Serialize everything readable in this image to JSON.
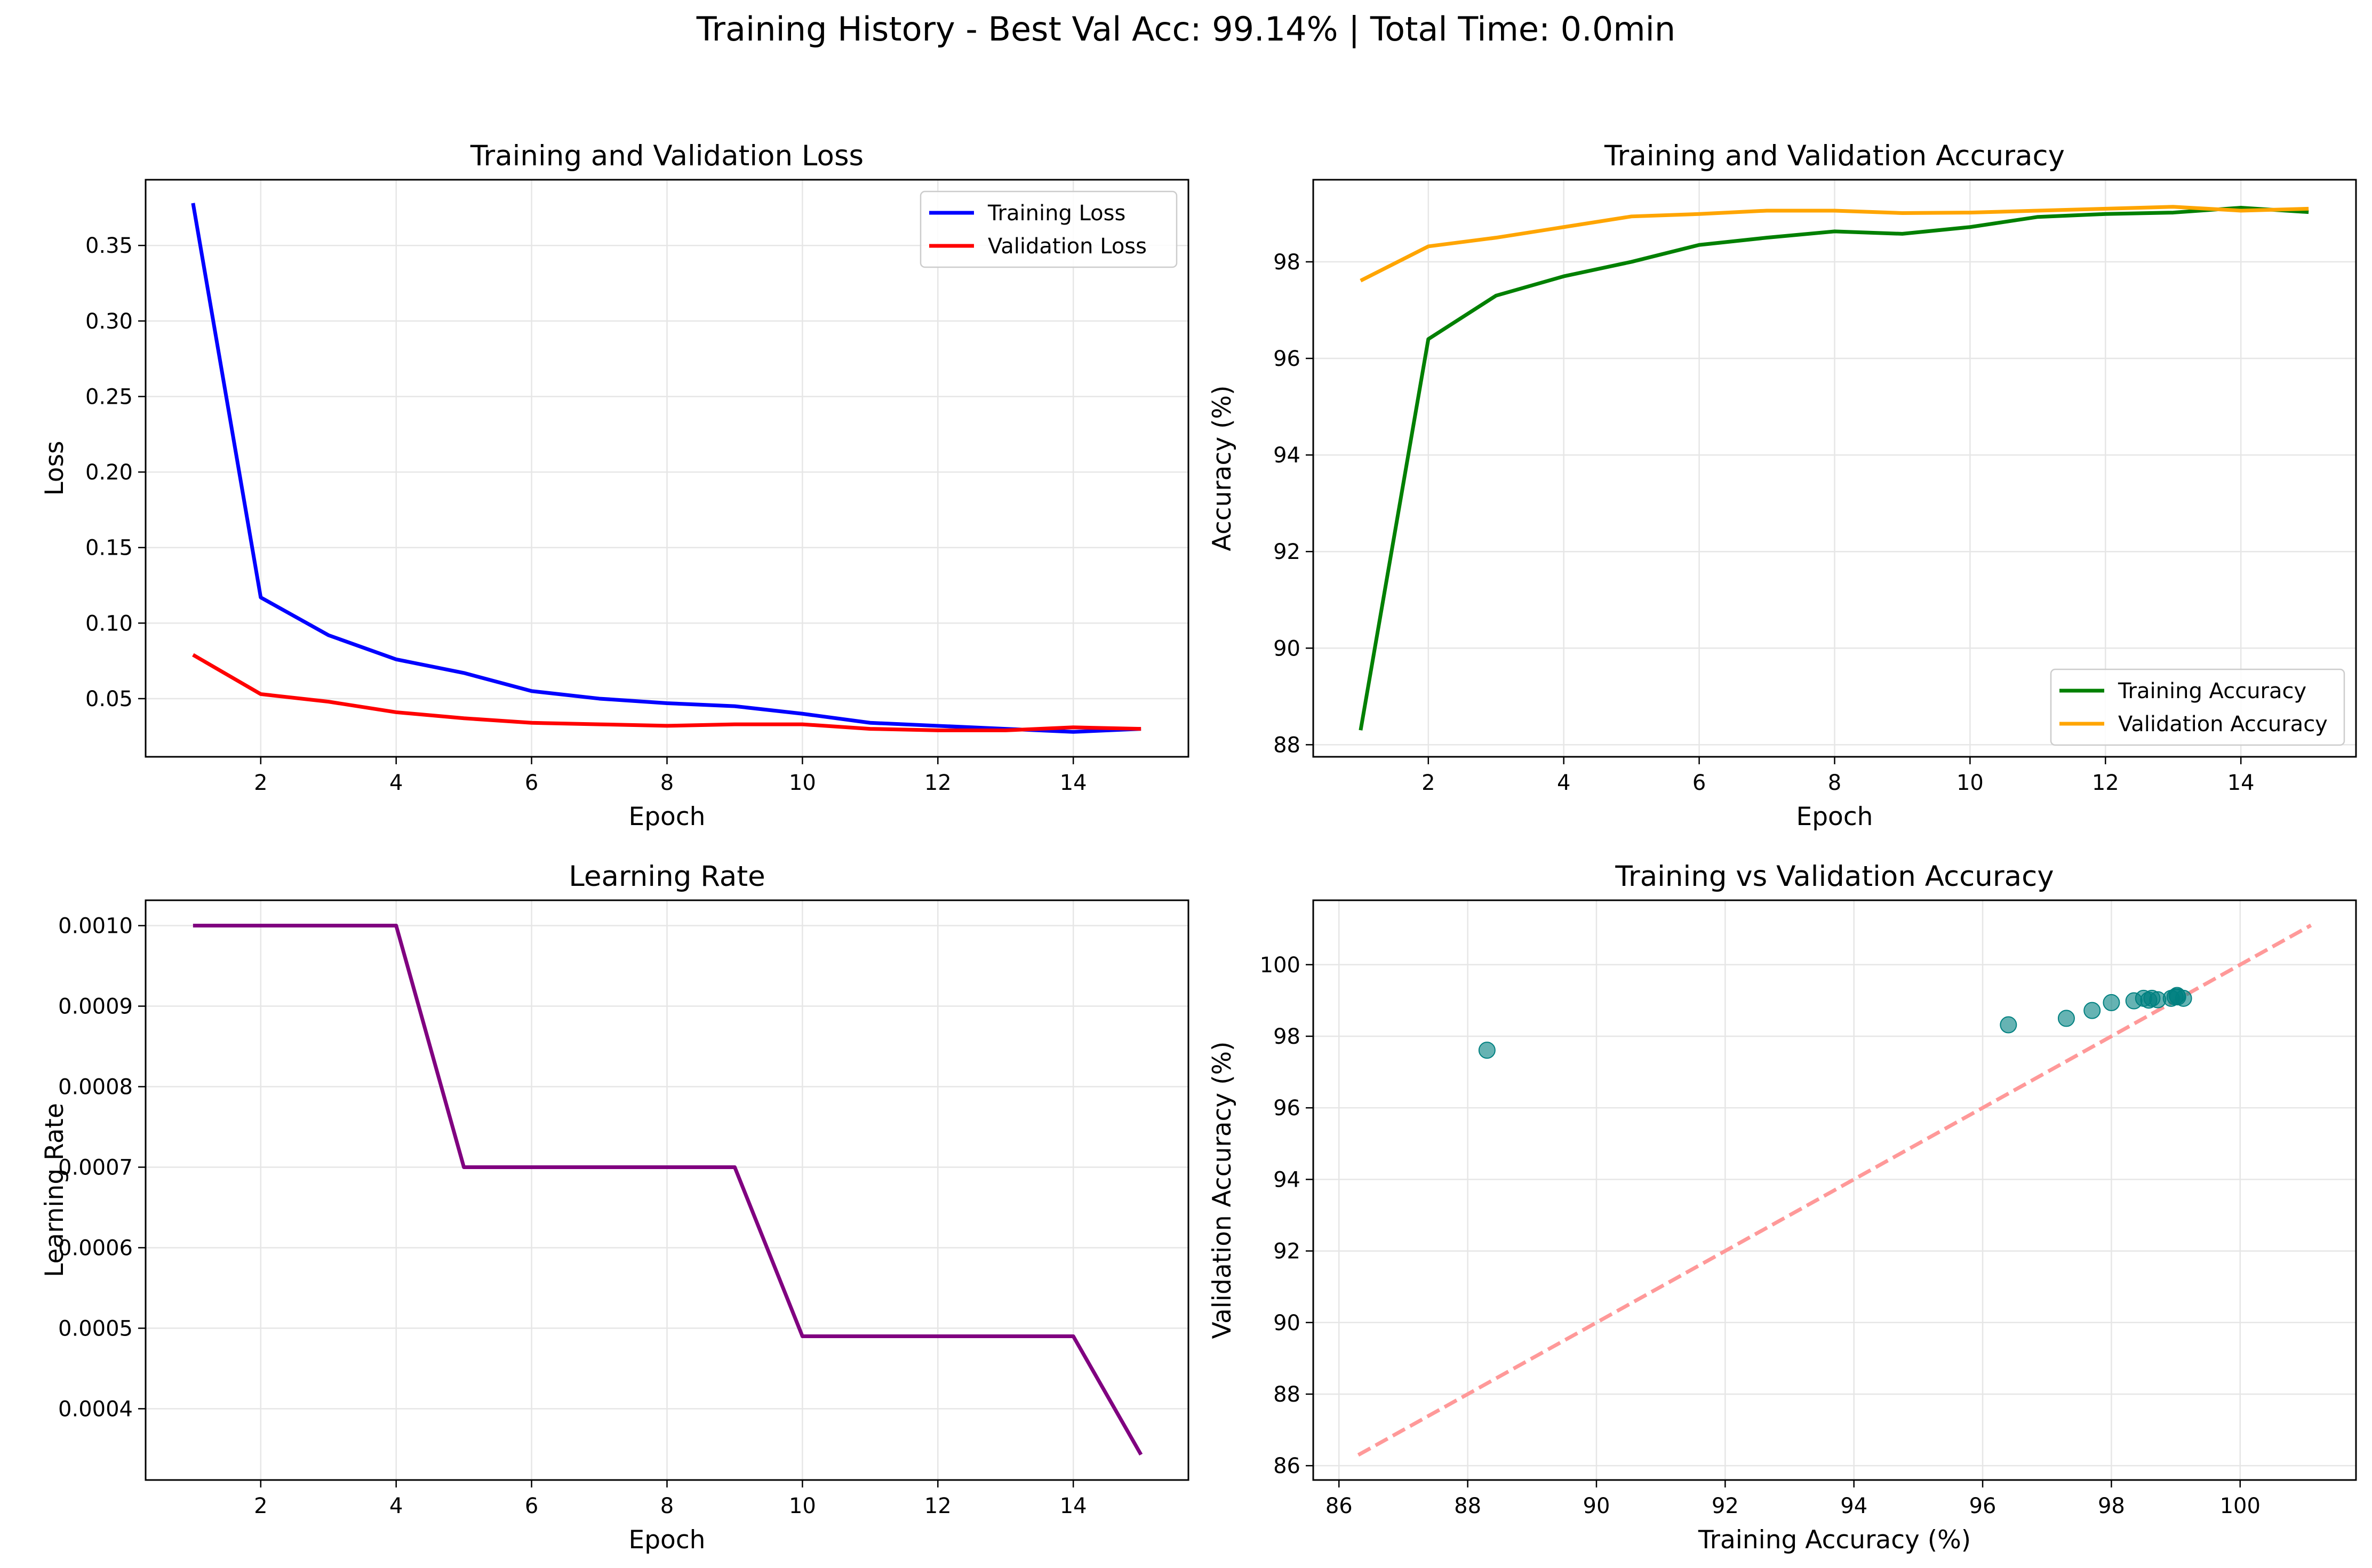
{
  "suptitle": "Training History - Best Val Acc: 99.14% | Total Time: 0.0min",
  "chart_data": [
    {
      "type": "line",
      "title": "Training and Validation Loss",
      "xlabel": "Epoch",
      "ylabel": "Loss",
      "xlim": [
        0.3,
        15.7
      ],
      "ylim": [
        0.0115,
        0.3935
      ],
      "xticks": [
        2,
        4,
        6,
        8,
        10,
        12,
        14
      ],
      "yticks": [
        0.05,
        0.1,
        0.15,
        0.2,
        0.25,
        0.3,
        0.35
      ],
      "ytick_labels": [
        "0.05",
        "0.10",
        "0.15",
        "0.20",
        "0.25",
        "0.30",
        "0.35"
      ],
      "grid": true,
      "legend": "top-right",
      "x": [
        1,
        2,
        3,
        4,
        5,
        6,
        7,
        8,
        9,
        10,
        11,
        12,
        13,
        14,
        15
      ],
      "series": [
        {
          "name": "Training Loss",
          "color": "#0000ff",
          "values": [
            0.378,
            0.117,
            0.092,
            0.076,
            0.067,
            0.055,
            0.05,
            0.047,
            0.045,
            0.04,
            0.034,
            0.032,
            0.03,
            0.028,
            0.03
          ]
        },
        {
          "name": "Validation Loss",
          "color": "#ff0000",
          "values": [
            0.079,
            0.053,
            0.048,
            0.041,
            0.037,
            0.034,
            0.033,
            0.032,
            0.033,
            0.033,
            0.03,
            0.029,
            0.029,
            0.031,
            0.03
          ]
        }
      ]
    },
    {
      "type": "line",
      "title": "Training and Validation Accuracy",
      "xlabel": "Epoch",
      "ylabel": "Accuracy (%)",
      "xlim": [
        0.3,
        15.7
      ],
      "ylim": [
        87.75,
        99.7
      ],
      "xticks": [
        2,
        4,
        6,
        8,
        10,
        12,
        14
      ],
      "yticks": [
        88,
        90,
        92,
        94,
        96,
        98
      ],
      "ytick_labels": [
        "88",
        "90",
        "92",
        "94",
        "96",
        "98"
      ],
      "grid": true,
      "legend": "bottom-right",
      "x": [
        1,
        2,
        3,
        4,
        5,
        6,
        7,
        8,
        9,
        10,
        11,
        12,
        13,
        14,
        15
      ],
      "series": [
        {
          "name": "Training Accuracy",
          "color": "#008000",
          "values": [
            88.3,
            96.4,
            97.3,
            97.7,
            98.0,
            98.35,
            98.5,
            98.63,
            98.58,
            98.72,
            98.93,
            98.99,
            99.02,
            99.12,
            99.03
          ]
        },
        {
          "name": "Validation Accuracy",
          "color": "#ffa500",
          "values": [
            97.61,
            98.32,
            98.5,
            98.72,
            98.94,
            98.99,
            99.06,
            99.06,
            99.01,
            99.02,
            99.06,
            99.1,
            99.14,
            99.06,
            99.1
          ]
        }
      ]
    },
    {
      "type": "line",
      "title": "Learning Rate",
      "xlabel": "Epoch",
      "ylabel": "Learning Rate",
      "xlim": [
        0.3,
        15.7
      ],
      "ylim": [
        0.0003115,
        0.0010315
      ],
      "xticks": [
        2,
        4,
        6,
        8,
        10,
        12,
        14
      ],
      "yticks": [
        0.0004,
        0.0005,
        0.0006,
        0.0007,
        0.0008,
        0.0009,
        0.001
      ],
      "ytick_labels": [
        "0.0004",
        "0.0005",
        "0.0006",
        "0.0007",
        "0.0008",
        "0.0009",
        "0.0010"
      ],
      "grid": true,
      "x": [
        1,
        2,
        3,
        4,
        5,
        6,
        7,
        8,
        9,
        10,
        11,
        12,
        13,
        14,
        15
      ],
      "series": [
        {
          "color": "#800080",
          "values": [
            0.001,
            0.001,
            0.001,
            0.001,
            0.0007,
            0.0007,
            0.0007,
            0.0007,
            0.0007,
            0.00049,
            0.00049,
            0.00049,
            0.00049,
            0.00049,
            0.000343
          ]
        }
      ]
    },
    {
      "type": "scatter",
      "title": "Training vs Validation Accuracy",
      "xlabel": "Training Accuracy (%)",
      "ylabel": "Validation Accuracy (%)",
      "xlim": [
        85.6,
        101.8
      ],
      "ylim": [
        85.6,
        101.8
      ],
      "xticks": [
        86,
        88,
        90,
        92,
        94,
        96,
        98,
        100
      ],
      "yticks": [
        86,
        88,
        90,
        92,
        94,
        96,
        98,
        100
      ],
      "xtick_labels": [
        "86",
        "88",
        "90",
        "92",
        "94",
        "96",
        "98",
        "100"
      ],
      "ytick_labels": [
        "86",
        "88",
        "90",
        "92",
        "94",
        "96",
        "98",
        "100"
      ],
      "grid": true,
      "point_color": "#008080",
      "reference_line": {
        "x": [
          86.3,
          101.1
        ],
        "y": [
          86.3,
          101.1
        ],
        "color": "#ff9999",
        "style": "dashed"
      },
      "points": [
        [
          88.3,
          97.61
        ],
        [
          96.4,
          98.32
        ],
        [
          97.3,
          98.5
        ],
        [
          97.7,
          98.72
        ],
        [
          98.0,
          98.94
        ],
        [
          98.35,
          98.99
        ],
        [
          98.5,
          99.06
        ],
        [
          98.63,
          99.06
        ],
        [
          98.58,
          99.01
        ],
        [
          98.72,
          99.02
        ],
        [
          98.93,
          99.06
        ],
        [
          98.99,
          99.1
        ],
        [
          99.02,
          99.14
        ],
        [
          99.12,
          99.06
        ],
        [
          99.03,
          99.1
        ]
      ]
    }
  ]
}
